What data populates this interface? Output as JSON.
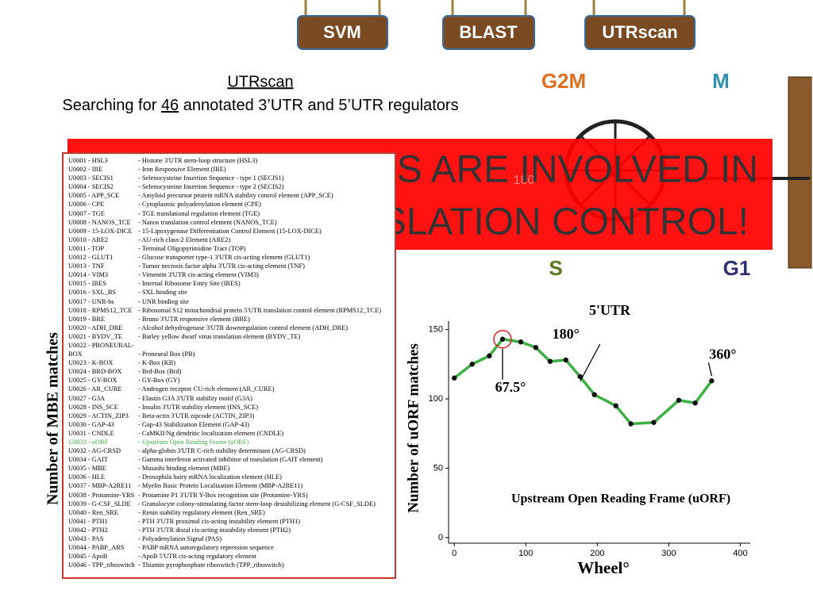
{
  "buttons": [
    "SVM",
    "BLAST",
    "UTRscan"
  ],
  "heading": {
    "title": "UTRscan",
    "line": [
      "Searching for ",
      "46",
      " annotated 3’UTR and 5’UTR regulators"
    ]
  },
  "phases": {
    "g2m": "G2M",
    "m": "M",
    "s": "S",
    "g1": "G1"
  },
  "banner": {
    "line1": "RS ARE INVOLVED IN",
    "line2": "SLATION CONTROL!",
    "wheel_label": "180"
  },
  "list": {
    "axis_label": "Number of MBE matches",
    "entries": [
      {
        "code": "U0001 - HSL3",
        "desc": "- Histone 3'UTR stem-loop structure (HSL3)"
      },
      {
        "code": "U0002 - IRE",
        "desc": "- Iron Responsive Element (IRE)"
      },
      {
        "code": "U0003 - SECIS1",
        "desc": "- Selenocysteine Insertion Sequence - type 1 (SECIS1)"
      },
      {
        "code": "U0004 - SECIS2",
        "desc": "- Selenocysteine Insertion Sequence - type 2 (SECIS2)"
      },
      {
        "code": "U0005 - APP_SCE",
        "desc": "- Amyloid precursor protein mRNA stability control element (APP_SCE)"
      },
      {
        "code": "U0006 - CPE",
        "desc": "- Cytoplasmic polyadenylation element (CPE)"
      },
      {
        "code": "U0007 - TGE",
        "desc": "- TGE translational regulation element (TGE)"
      },
      {
        "code": "U0008 - NANOS_TCE",
        "desc": "- Nanos translation control element (NANOS_TCE)"
      },
      {
        "code": "U0009 - 15-LOX-DICE",
        "desc": "- 15-Lipoxygenase Differentiation Control Element (15-LOX-DICE)"
      },
      {
        "code": "U0010 - ARE2",
        "desc": "- AU-rich class-2 Element (ARE2)"
      },
      {
        "code": "U0011 - TOP",
        "desc": "- Terminal Oligopyrimidine Tract (TOP)"
      },
      {
        "code": "U0012 - GLUT1",
        "desc": "- Glucose transporter type-1 3'UTR cis-acting element (GLUT1)"
      },
      {
        "code": "U0013 - TNF",
        "desc": "- Tumor necrosis factor alpha 3'UTR cis-acting element (TNF)"
      },
      {
        "code": "U0014 - VIM3",
        "desc": "- Vimentin 3'UTR cis-acting element (VIM3)"
      },
      {
        "code": "U0015 - IRES",
        "desc": "- Internal Ribosome Entry Site (IRES)"
      },
      {
        "code": "U0016 - SXL_BS",
        "desc": "- SXL binding site"
      },
      {
        "code": "U0017 - UNR-bs",
        "desc": "- UNR binding site"
      },
      {
        "code": "U0018 - RPMS12_TCE",
        "desc": "- Ribosomal S12 mitochondrial protein 5'UTR translation control element (RPMS12_TCE)"
      },
      {
        "code": "U0019 - BRE",
        "desc": "- Bruno 3'UTR responsive element (BRE)"
      },
      {
        "code": "U0020 - ADH_DRE",
        "desc": "- Alcohol dehydrogenase 3'UTR downregulation control element (ADH_DRE)"
      },
      {
        "code": "U0021 - BYDV_TE",
        "desc": "- Barley yellow dwarf virus translation element (BYDV_TE)"
      },
      {
        "code": "U0022 - PRONEURAL-BOX",
        "desc": "- Proneural Box (PB)"
      },
      {
        "code": "U0023 - K-BOX",
        "desc": "- K-Box (KB)"
      },
      {
        "code": "U0024 - BRD-BOX",
        "desc": "- Brd-Box (Brd)"
      },
      {
        "code": "U0025 - GY-BOX",
        "desc": "- GY-Box (GY)"
      },
      {
        "code": "U0026 - AR_CURE",
        "desc": "- Androgen receptor CU-rich element (AR_CURE)"
      },
      {
        "code": "U0027 - G3A",
        "desc": "- Elastin G3A 3'UTR stability motif (G3A)"
      },
      {
        "code": "U0028 - INS_SCE",
        "desc": "- Insulin 3'UTR stability element (INS_SCE)"
      },
      {
        "code": "U0029 - ACTIN_ZIP3",
        "desc": "- Beta-actin 3'UTR zipcode (ACTIN_ZIP3)"
      },
      {
        "code": "U0030 - GAP-43",
        "desc": "- Gap-43 Stabilization Element (GAP-43)"
      },
      {
        "code": "U0031 - CNDLE",
        "desc": "- CaMKII/Ng dendritic localization element (CNDLE)"
      },
      {
        "code": "U0033 - uORF",
        "desc": "- Upstream Open Reading Frame (uORF)",
        "color": "#3cb043"
      },
      {
        "code": "U0032 - AG-CRSD",
        "desc": "- alpha-globin 3'UTR C-rich stability determinant (AG-CRSD)"
      },
      {
        "code": "U0034 - GAIT",
        "desc": "- Gamma interferon activated inhibitor of translation (GAIT element)"
      },
      {
        "code": "U0035 - MBE",
        "desc": "- Musashi binding element (MBE)"
      },
      {
        "code": "U0036 - HLE",
        "desc": "- Drosophila hairy mRNA localization element (HLE)"
      },
      {
        "code": "U0037 - MBP-A2RE11",
        "desc": "- Myelin Basic Protein Localization Element (MBP-A2RE11)"
      },
      {
        "code": "U0038 - Protamine-YRS",
        "desc": "- Protamine P1 3'UTR Y-Box recognition site (Protamine-YRS)"
      },
      {
        "code": "U0039 - G-CSF_SLDE",
        "desc": "- Granulocyte colony-stimulating factor stem-loop destabilizing element (G-CSF_SLDE)"
      },
      {
        "code": "U0040 - Ren_SRE",
        "desc": "- Renin stability regulatory element (Ren_SRE)"
      },
      {
        "code": "U0041 - PTH1",
        "desc": "- PTH 3'UTR proximal cis-acting instability element (PTH1)"
      },
      {
        "code": "U0042 - PTH2",
        "desc": "- PTH 3'UTR distal cis-acting instability element (PTH2)"
      },
      {
        "code": "U0043 - PAS",
        "desc": "- Polyadenylation Signal (PAS)"
      },
      {
        "code": "U0044 - PABP_ARS",
        "desc": "- PABP mRNA autoregulatory repression sequence"
      },
      {
        "code": "U0045 - ApoB",
        "desc": "- ApoB 5'UTR cis-acting regulatory element"
      },
      {
        "code": "U0046 - TPP_riboswitch",
        "desc": "- Thiamin pyrophosphate riboswitch (TPP_riboswitch)"
      }
    ]
  },
  "chart_data": {
    "type": "line",
    "title": "5'UTR",
    "xlabel": "Wheel°",
    "ylabel": "Number of uORF matches",
    "inner_label": "Upstream Open Reading Frame (uORF)",
    "x": [
      0,
      25,
      49,
      67.5,
      93,
      114,
      134,
      156,
      176,
      196,
      226,
      247,
      279,
      314,
      337,
      360
    ],
    "series": [
      {
        "name": "uORF",
        "color": "#3cb043",
        "values": [
          115,
          125,
          131,
          143,
          141,
          137,
          127,
          128,
          116,
          103,
          95,
          82,
          83,
          99,
          97,
          113
        ]
      }
    ],
    "xlim": [
      -8,
      414
    ],
    "ylim": [
      -4,
      156
    ],
    "xticks": [
      0,
      100,
      200,
      300,
      400
    ],
    "yticks": [
      0,
      50,
      100,
      150
    ],
    "annotations": [
      {
        "text": "67.5°",
        "x": 67.5
      },
      {
        "text": "180°",
        "x": 180
      },
      {
        "text": "360°",
        "x": 360
      }
    ]
  }
}
